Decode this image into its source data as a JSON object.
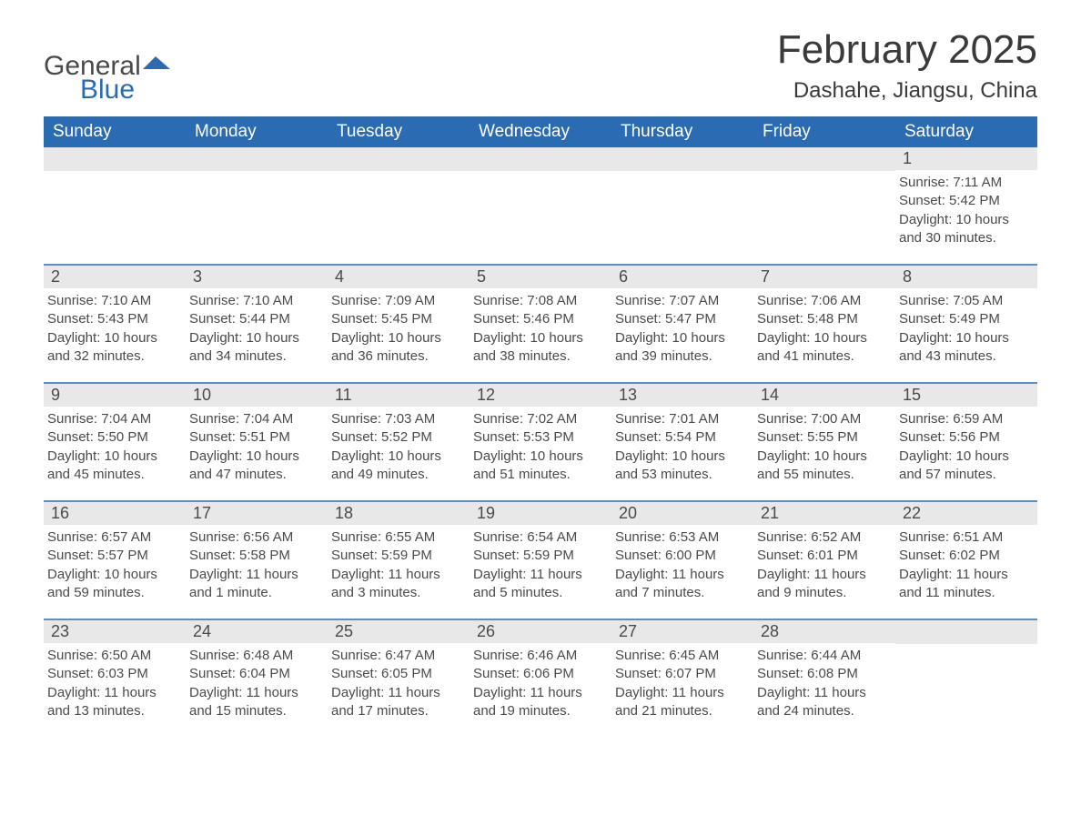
{
  "logo": {
    "text1": "General",
    "text2": "Blue",
    "icon_color": "#2b6bb2"
  },
  "title": "February 2025",
  "location": "Dashahe, Jiangsu, China",
  "colors": {
    "header_bg": "#2b6bb2",
    "header_text": "#ffffff",
    "daynum_bg": "#e8e8e8",
    "week_border": "#5a8fc7",
    "body_text": "#4a4a4a",
    "page_bg": "#ffffff"
  },
  "days_of_week": [
    "Sunday",
    "Monday",
    "Tuesday",
    "Wednesday",
    "Thursday",
    "Friday",
    "Saturday"
  ],
  "weeks": [
    [
      {
        "num": "",
        "lines": []
      },
      {
        "num": "",
        "lines": []
      },
      {
        "num": "",
        "lines": []
      },
      {
        "num": "",
        "lines": []
      },
      {
        "num": "",
        "lines": []
      },
      {
        "num": "",
        "lines": []
      },
      {
        "num": "1",
        "lines": [
          "Sunrise: 7:11 AM",
          "Sunset: 5:42 PM",
          "Daylight: 10 hours and 30 minutes."
        ]
      }
    ],
    [
      {
        "num": "2",
        "lines": [
          "Sunrise: 7:10 AM",
          "Sunset: 5:43 PM",
          "Daylight: 10 hours and 32 minutes."
        ]
      },
      {
        "num": "3",
        "lines": [
          "Sunrise: 7:10 AM",
          "Sunset: 5:44 PM",
          "Daylight: 10 hours and 34 minutes."
        ]
      },
      {
        "num": "4",
        "lines": [
          "Sunrise: 7:09 AM",
          "Sunset: 5:45 PM",
          "Daylight: 10 hours and 36 minutes."
        ]
      },
      {
        "num": "5",
        "lines": [
          "Sunrise: 7:08 AM",
          "Sunset: 5:46 PM",
          "Daylight: 10 hours and 38 minutes."
        ]
      },
      {
        "num": "6",
        "lines": [
          "Sunrise: 7:07 AM",
          "Sunset: 5:47 PM",
          "Daylight: 10 hours and 39 minutes."
        ]
      },
      {
        "num": "7",
        "lines": [
          "Sunrise: 7:06 AM",
          "Sunset: 5:48 PM",
          "Daylight: 10 hours and 41 minutes."
        ]
      },
      {
        "num": "8",
        "lines": [
          "Sunrise: 7:05 AM",
          "Sunset: 5:49 PM",
          "Daylight: 10 hours and 43 minutes."
        ]
      }
    ],
    [
      {
        "num": "9",
        "lines": [
          "Sunrise: 7:04 AM",
          "Sunset: 5:50 PM",
          "Daylight: 10 hours and 45 minutes."
        ]
      },
      {
        "num": "10",
        "lines": [
          "Sunrise: 7:04 AM",
          "Sunset: 5:51 PM",
          "Daylight: 10 hours and 47 minutes."
        ]
      },
      {
        "num": "11",
        "lines": [
          "Sunrise: 7:03 AM",
          "Sunset: 5:52 PM",
          "Daylight: 10 hours and 49 minutes."
        ]
      },
      {
        "num": "12",
        "lines": [
          "Sunrise: 7:02 AM",
          "Sunset: 5:53 PM",
          "Daylight: 10 hours and 51 minutes."
        ]
      },
      {
        "num": "13",
        "lines": [
          "Sunrise: 7:01 AM",
          "Sunset: 5:54 PM",
          "Daylight: 10 hours and 53 minutes."
        ]
      },
      {
        "num": "14",
        "lines": [
          "Sunrise: 7:00 AM",
          "Sunset: 5:55 PM",
          "Daylight: 10 hours and 55 minutes."
        ]
      },
      {
        "num": "15",
        "lines": [
          "Sunrise: 6:59 AM",
          "Sunset: 5:56 PM",
          "Daylight: 10 hours and 57 minutes."
        ]
      }
    ],
    [
      {
        "num": "16",
        "lines": [
          "Sunrise: 6:57 AM",
          "Sunset: 5:57 PM",
          "Daylight: 10 hours and 59 minutes."
        ]
      },
      {
        "num": "17",
        "lines": [
          "Sunrise: 6:56 AM",
          "Sunset: 5:58 PM",
          "Daylight: 11 hours and 1 minute."
        ]
      },
      {
        "num": "18",
        "lines": [
          "Sunrise: 6:55 AM",
          "Sunset: 5:59 PM",
          "Daylight: 11 hours and 3 minutes."
        ]
      },
      {
        "num": "19",
        "lines": [
          "Sunrise: 6:54 AM",
          "Sunset: 5:59 PM",
          "Daylight: 11 hours and 5 minutes."
        ]
      },
      {
        "num": "20",
        "lines": [
          "Sunrise: 6:53 AM",
          "Sunset: 6:00 PM",
          "Daylight: 11 hours and 7 minutes."
        ]
      },
      {
        "num": "21",
        "lines": [
          "Sunrise: 6:52 AM",
          "Sunset: 6:01 PM",
          "Daylight: 11 hours and 9 minutes."
        ]
      },
      {
        "num": "22",
        "lines": [
          "Sunrise: 6:51 AM",
          "Sunset: 6:02 PM",
          "Daylight: 11 hours and 11 minutes."
        ]
      }
    ],
    [
      {
        "num": "23",
        "lines": [
          "Sunrise: 6:50 AM",
          "Sunset: 6:03 PM",
          "Daylight: 11 hours and 13 minutes."
        ]
      },
      {
        "num": "24",
        "lines": [
          "Sunrise: 6:48 AM",
          "Sunset: 6:04 PM",
          "Daylight: 11 hours and 15 minutes."
        ]
      },
      {
        "num": "25",
        "lines": [
          "Sunrise: 6:47 AM",
          "Sunset: 6:05 PM",
          "Daylight: 11 hours and 17 minutes."
        ]
      },
      {
        "num": "26",
        "lines": [
          "Sunrise: 6:46 AM",
          "Sunset: 6:06 PM",
          "Daylight: 11 hours and 19 minutes."
        ]
      },
      {
        "num": "27",
        "lines": [
          "Sunrise: 6:45 AM",
          "Sunset: 6:07 PM",
          "Daylight: 11 hours and 21 minutes."
        ]
      },
      {
        "num": "28",
        "lines": [
          "Sunrise: 6:44 AM",
          "Sunset: 6:08 PM",
          "Daylight: 11 hours and 24 minutes."
        ]
      },
      {
        "num": "",
        "lines": []
      }
    ]
  ]
}
